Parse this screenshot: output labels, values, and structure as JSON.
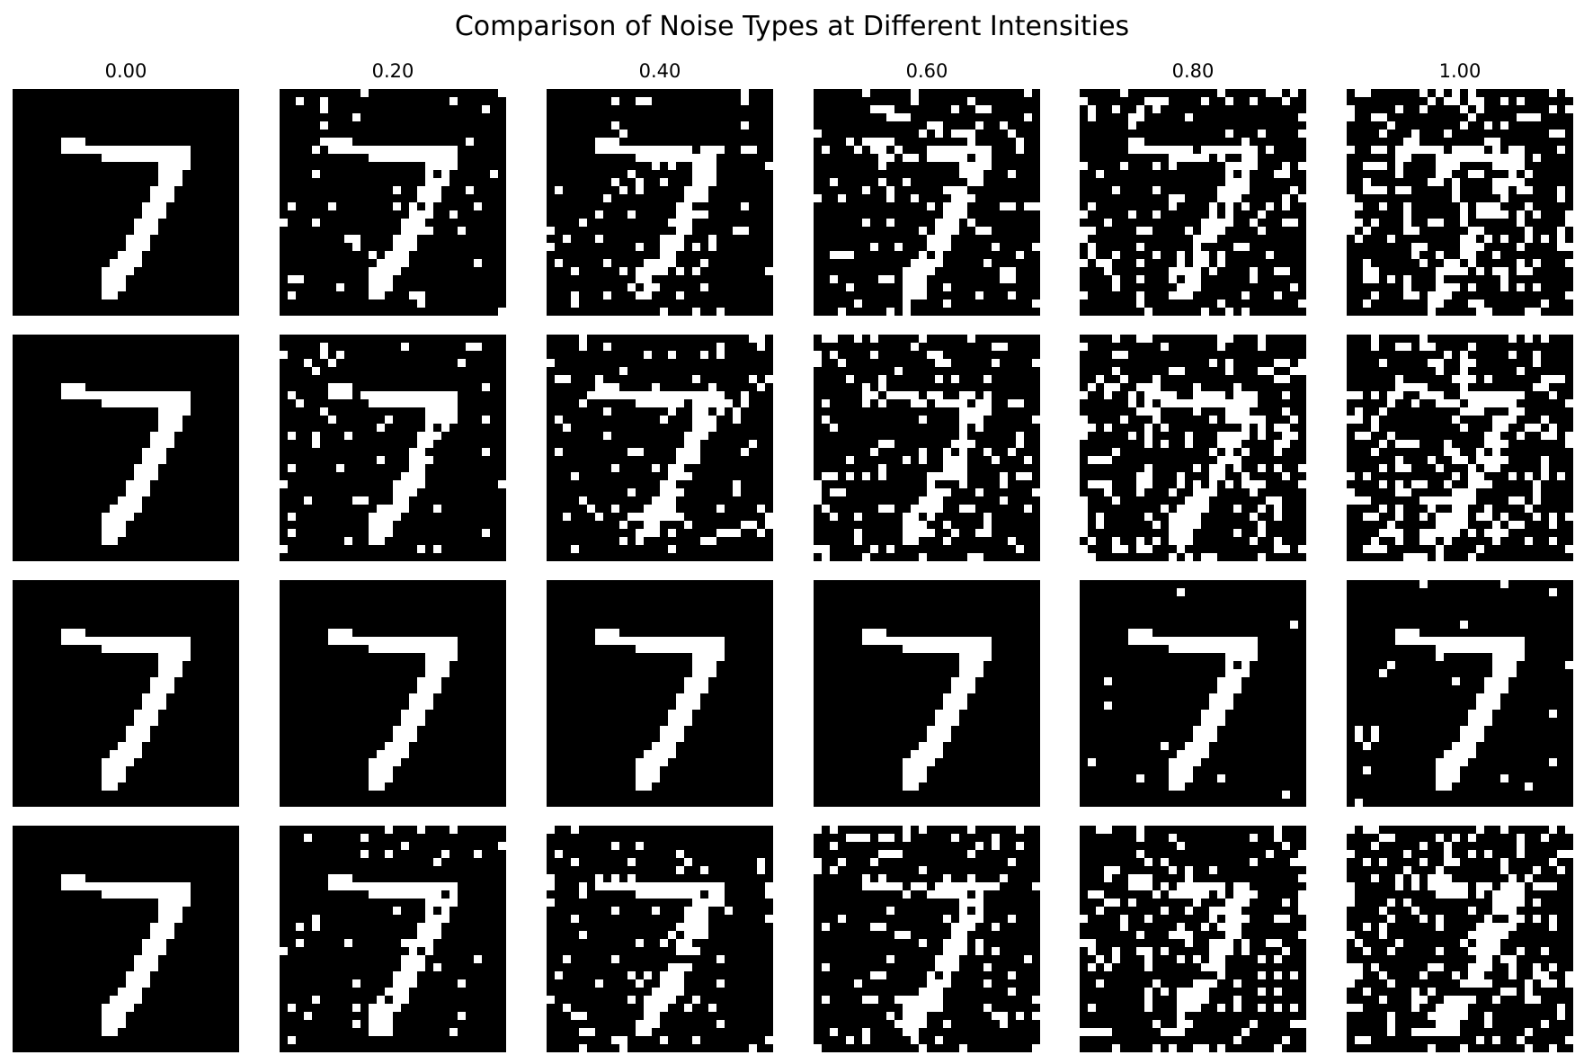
{
  "figure": {
    "title": "Comparison of Noise Types at Different Intensities",
    "column_labels": [
      "0.00",
      "0.20",
      "0.40",
      "0.60",
      "0.80",
      "1.00"
    ]
  },
  "grid": {
    "rows": 4,
    "image_resolution": [
      28,
      28
    ],
    "subject": "handwritten digit 7",
    "noise_intensities": [
      0.0,
      0.2,
      0.4,
      0.6,
      0.8,
      1.0
    ],
    "row_noise_densities": [
      [
        0.0,
        0.04,
        0.08,
        0.11,
        0.16,
        0.2
      ],
      [
        0.0,
        0.06,
        0.1,
        0.14,
        0.2,
        0.26
      ],
      [
        0.0,
        0.0,
        0.0,
        0.0,
        0.01,
        0.025
      ],
      [
        0.0,
        0.05,
        0.09,
        0.13,
        0.16,
        0.19
      ]
    ],
    "colors": {
      "background": "#000000",
      "foreground": "#ffffff"
    }
  }
}
